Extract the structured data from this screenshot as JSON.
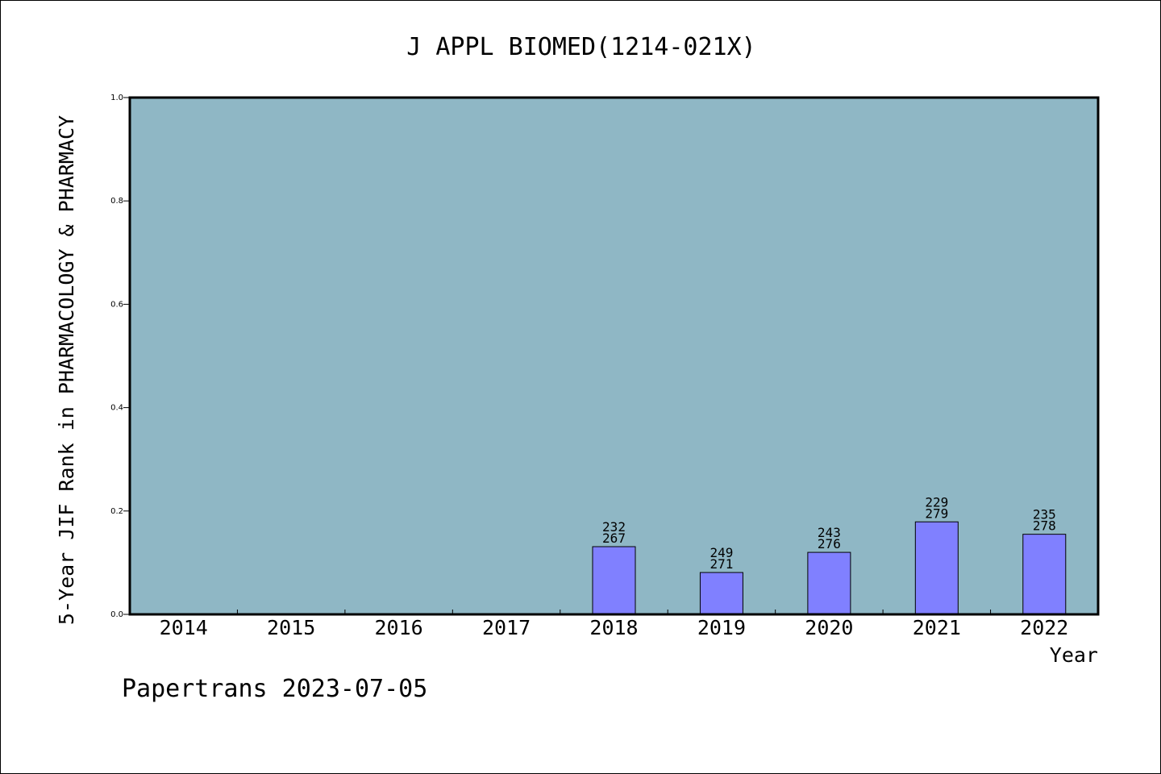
{
  "chart_data": {
    "type": "bar",
    "title": "J APPL BIOMED(1214-021X)",
    "xlabel": "Year",
    "ylabel": "5-Year JIF Rank in PHARMACOLOGY & PHARMACY",
    "ylim": [
      0.0,
      1.0
    ],
    "yticks": [
      "0.0",
      "0.2",
      "0.4",
      "0.6",
      "0.8",
      "1.0"
    ],
    "categories": [
      "2014",
      "2015",
      "2016",
      "2017",
      "2018",
      "2019",
      "2020",
      "2021",
      "2022"
    ],
    "values": [
      null,
      null,
      null,
      null,
      0.131,
      0.081,
      0.12,
      0.179,
      0.155
    ],
    "rank": [
      null,
      null,
      null,
      null,
      "232",
      "249",
      "243",
      "229",
      "235"
    ],
    "total": [
      null,
      null,
      null,
      null,
      "267",
      "271",
      "276",
      "279",
      "278"
    ],
    "grid": false,
    "colors": {
      "plot_bg": "#8fb7c5",
      "bar": "#8080ff",
      "frame": "#000000"
    }
  },
  "footer": {
    "text": "Papertrans 2023-07-05"
  }
}
